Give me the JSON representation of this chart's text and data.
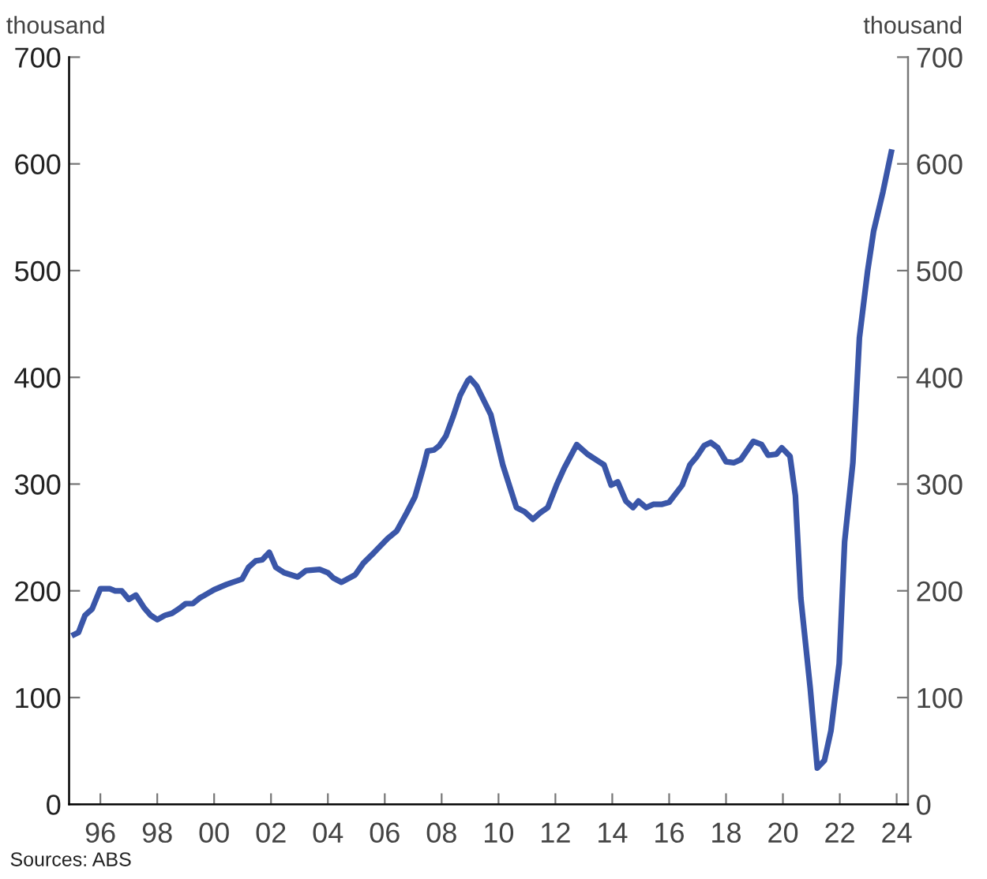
{
  "chart_data": {
    "type": "line",
    "ylabel": "thousand",
    "y2label": "thousand",
    "annotations": [
      "Sources: ABS"
    ],
    "xlim": [
      1994.9,
      2024.4
    ],
    "xticks": [
      {
        "value": 1996,
        "label": "96"
      },
      {
        "value": 1998,
        "label": "98"
      },
      {
        "value": 2000,
        "label": "00"
      },
      {
        "value": 2002,
        "label": "02"
      },
      {
        "value": 2004,
        "label": "04"
      },
      {
        "value": 2006,
        "label": "06"
      },
      {
        "value": 2008,
        "label": "08"
      },
      {
        "value": 2010,
        "label": "10"
      },
      {
        "value": 2012,
        "label": "12"
      },
      {
        "value": 2014,
        "label": "14"
      },
      {
        "value": 2016,
        "label": "16"
      },
      {
        "value": 2018,
        "label": "18"
      },
      {
        "value": 2020,
        "label": "20"
      },
      {
        "value": 2022,
        "label": "22"
      },
      {
        "value": 2024,
        "label": "24"
      }
    ],
    "ylim": [
      0,
      700
    ],
    "yticks": [
      0,
      100,
      200,
      300,
      400,
      500,
      600,
      700
    ],
    "y2lim": [
      0,
      700
    ],
    "y2ticks": [
      0,
      100,
      200,
      300,
      400,
      500,
      600,
      700
    ],
    "grid": false,
    "line_style": "solid",
    "marker": "none",
    "series": [
      {
        "color": "#3a56a8",
        "x": [
          1995.08,
          1995.23,
          1995.46,
          1995.71,
          1996.0,
          1996.33,
          1996.52,
          1996.75,
          1997.0,
          1997.25,
          1997.54,
          1997.77,
          1998.0,
          1998.27,
          1998.52,
          1998.75,
          1999.0,
          1999.25,
          1999.48,
          2000.0,
          2000.44,
          2000.98,
          2001.21,
          2001.46,
          2001.69,
          2001.94,
          2002.17,
          2002.46,
          2002.94,
          2003.23,
          2003.71,
          2004.0,
          2004.19,
          2004.48,
          2004.96,
          2005.25,
          2005.63,
          2006.1,
          2006.42,
          2006.77,
          2007.06,
          2007.38,
          2007.5,
          2007.73,
          2007.92,
          2008.15,
          2008.4,
          2008.65,
          2008.92,
          2009.0,
          2009.23,
          2009.73,
          2010.15,
          2010.63,
          2010.92,
          2011.21,
          2011.46,
          2011.73,
          2012.04,
          2012.31,
          2012.75,
          2013.13,
          2013.71,
          2013.96,
          2014.19,
          2014.48,
          2014.73,
          2014.92,
          2015.19,
          2015.44,
          2015.73,
          2016.0,
          2016.46,
          2016.73,
          2016.98,
          2017.23,
          2017.46,
          2017.71,
          2018.0,
          2018.27,
          2018.52,
          2018.96,
          2019.25,
          2019.48,
          2019.77,
          2019.96,
          2020.25,
          2020.44,
          2020.63,
          2020.96,
          2021.21,
          2021.46,
          2021.69,
          2021.98,
          2022.17,
          2022.46,
          2022.69,
          2022.98,
          2023.19,
          2023.52,
          2023.81
        ],
        "values": [
          159,
          161,
          177,
          183,
          202,
          202,
          200,
          200,
          192,
          196,
          184,
          177,
          173,
          177,
          179,
          183,
          188,
          188,
          193,
          201,
          206,
          211,
          222,
          228,
          229,
          236,
          222,
          217,
          213,
          219,
          220,
          217,
          212,
          208,
          215,
          226,
          236,
          249,
          256,
          273,
          288,
          318,
          331,
          332,
          336,
          345,
          363,
          383,
          397,
          399,
          392,
          365,
          318,
          278,
          274,
          267,
          273,
          278,
          299,
          315,
          337,
          328,
          318,
          299,
          302,
          284,
          278,
          284,
          278,
          281,
          281,
          283,
          299,
          318,
          326,
          336,
          339,
          334,
          321,
          320,
          323,
          340,
          337,
          327,
          328,
          334,
          326,
          289,
          193,
          109,
          34,
          41,
          69,
          132,
          246,
          320,
          437,
          500,
          537,
          574,
          611
        ]
      }
    ]
  }
}
